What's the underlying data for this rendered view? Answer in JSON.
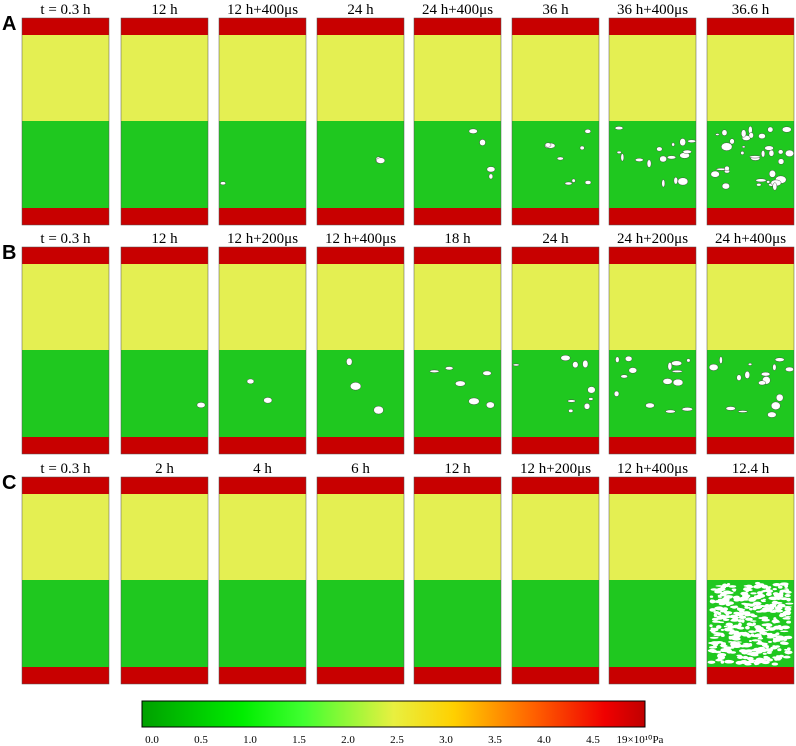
{
  "rows": [
    {
      "label": "A",
      "times": [
        "t = 0.3 h",
        "12 h",
        "12 h+400μs",
        "24 h",
        "24 h+400μs",
        "36 h",
        "36 h+400μs",
        "36.6 h"
      ]
    },
    {
      "label": "B",
      "times": [
        "t = 0.3 h",
        "12 h",
        "12 h+200μs",
        "12 h+400μs",
        "18 h",
        "24 h",
        "24 h+200μs",
        "24 h+400μs"
      ]
    },
    {
      "label": "C",
      "times": [
        "t = 0.3 h",
        "2 h",
        "4 h",
        "6 h",
        "12 h",
        "12 h+200μs",
        "12 h+400μs",
        "12.4 h"
      ]
    }
  ],
  "colorbar": {
    "ticks": [
      "0.0",
      "0.5",
      "1.0",
      "1.5",
      "2.0",
      "2.5",
      "3.0",
      "3.5",
      "4.0",
      "4.5"
    ],
    "unit_label": "19×10¹⁰Pa"
  }
}
